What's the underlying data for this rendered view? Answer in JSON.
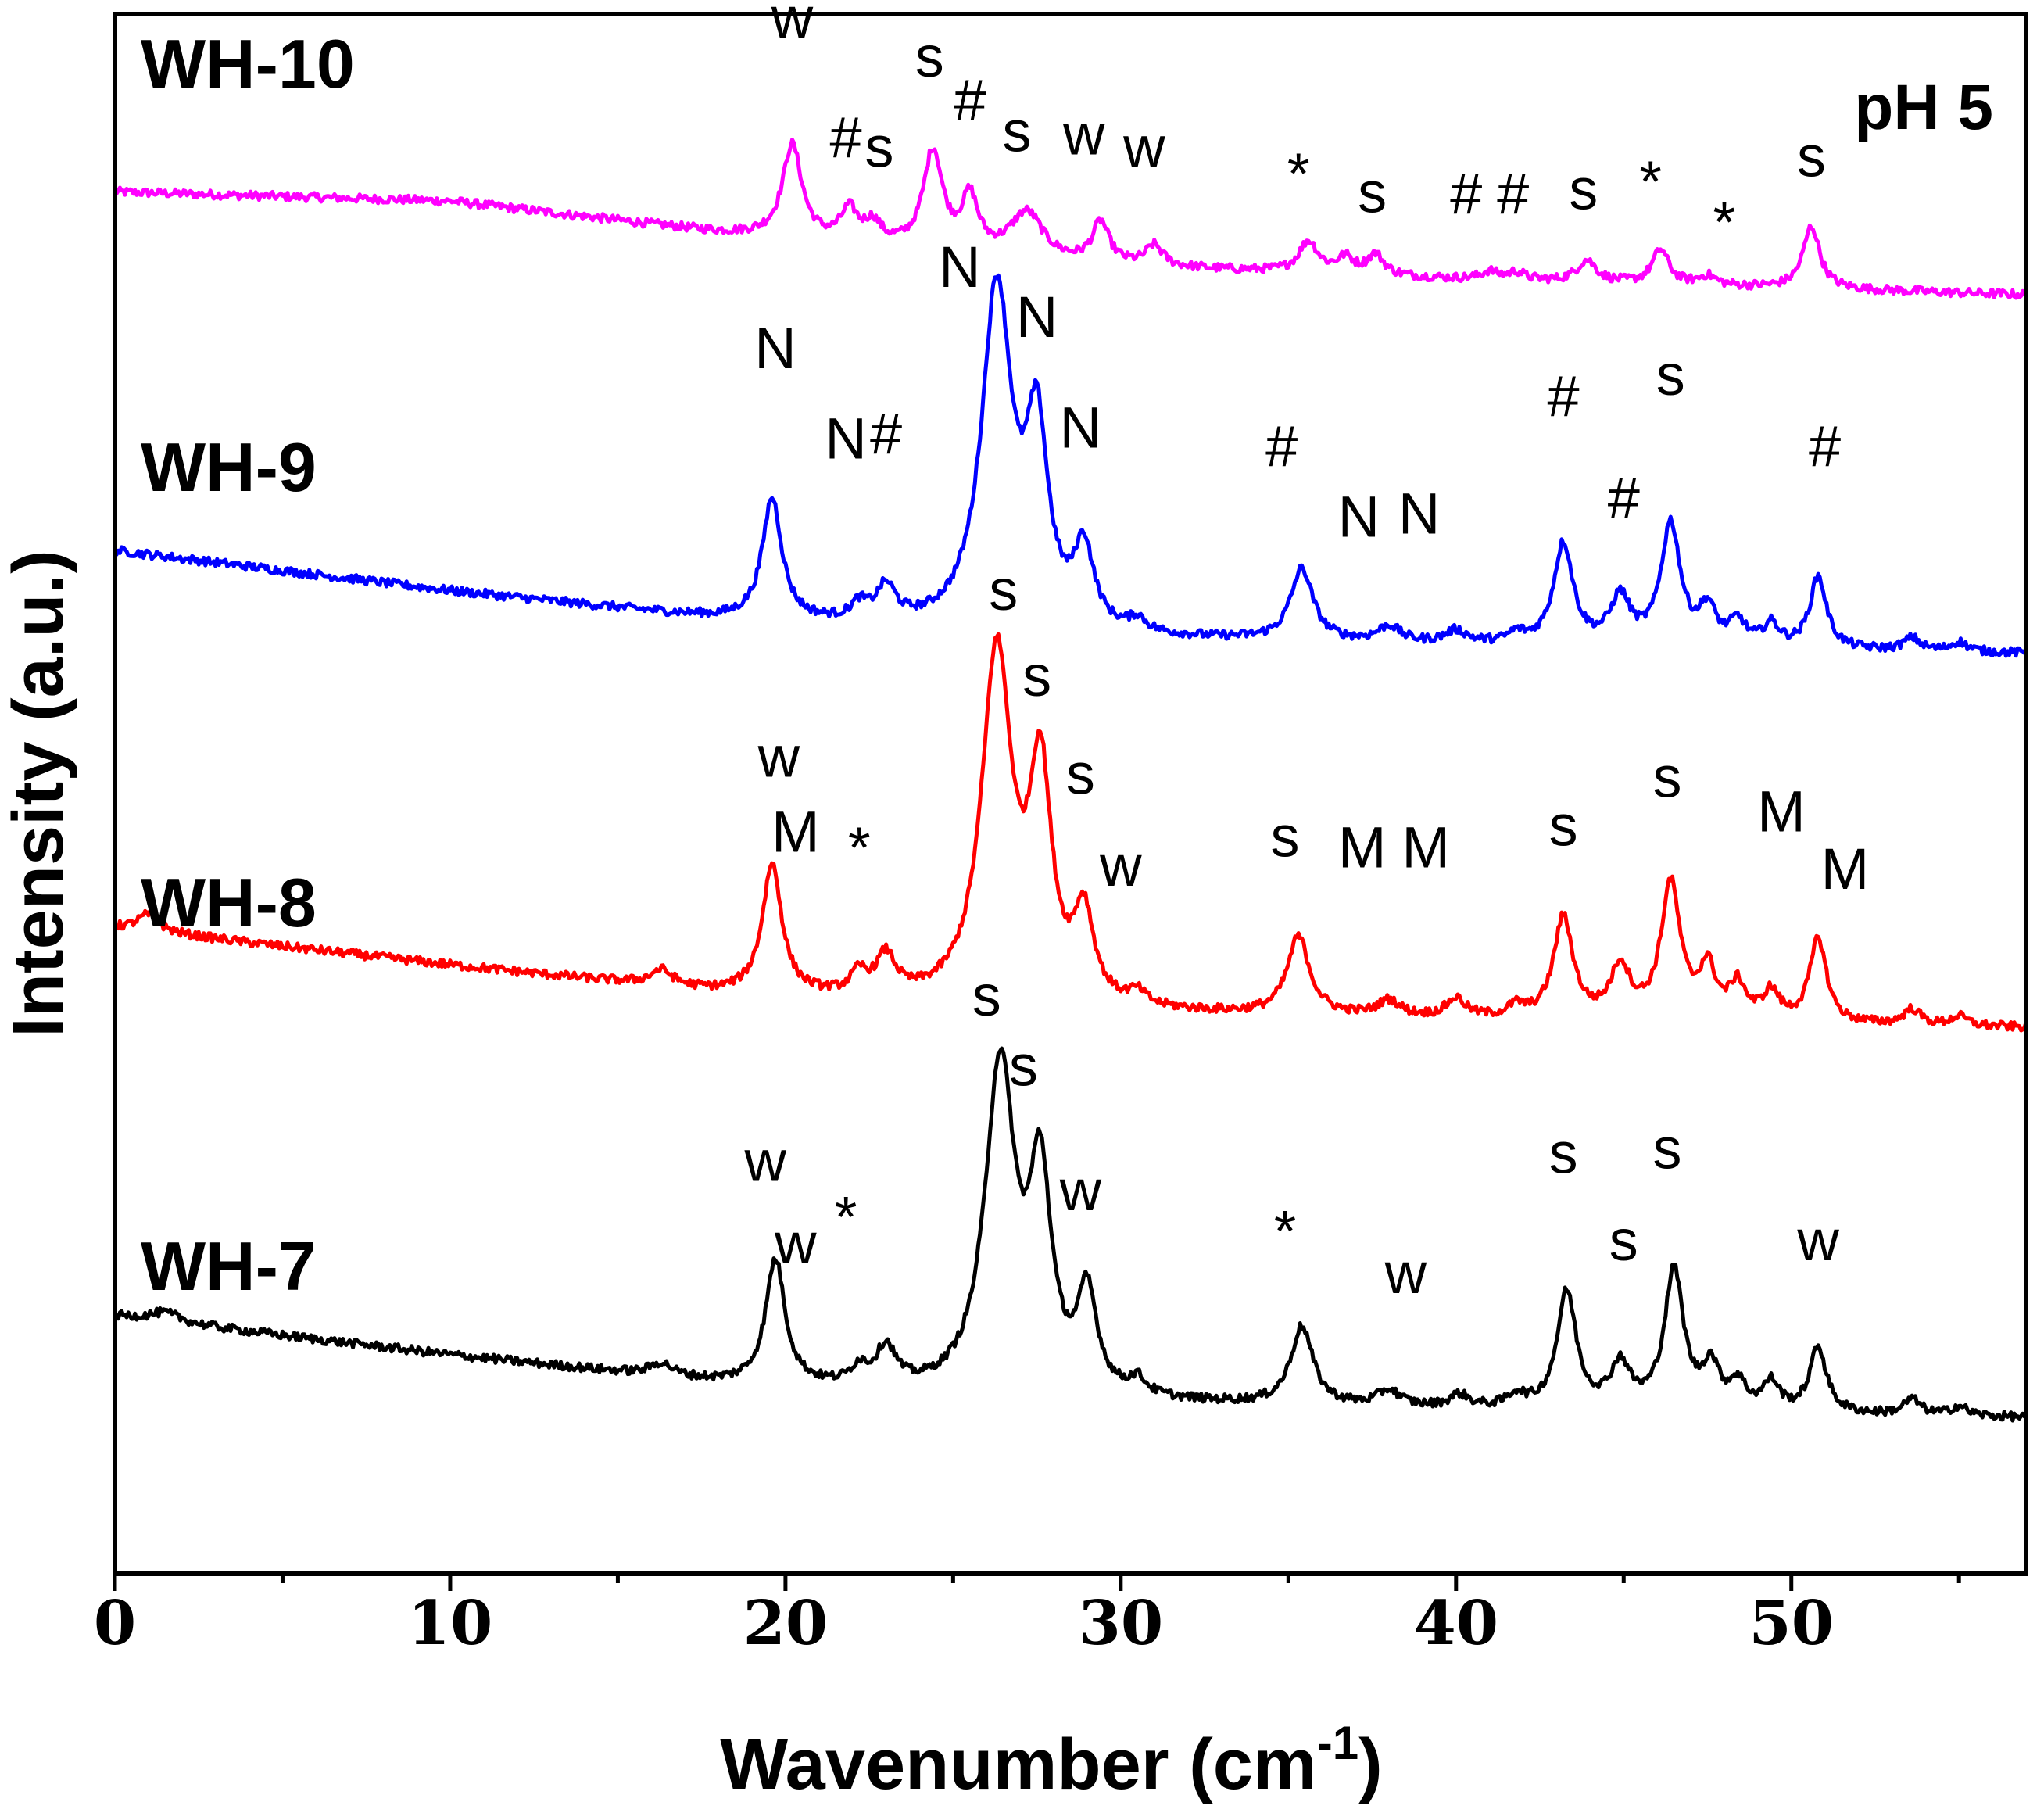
{
  "chart_data": {
    "type": "line",
    "xlabel": "Wavenumber (cm",
    "xlabel_sup": "-1",
    "xlabel_close": ")",
    "ylabel": "Intensity (a.u.)",
    "xlim": [
      0,
      57
    ],
    "ylim": [
      0,
      100
    ],
    "xticks": [
      0,
      10,
      20,
      30,
      40,
      50
    ],
    "annotation": "pH 5",
    "series": [
      {
        "name": "WH-10",
        "color": "#ff00ff",
        "offset": 80,
        "baseline": [
          [
            0,
            8.6
          ],
          [
            10,
            8.0
          ],
          [
            18,
            6.0
          ],
          [
            28,
            4.0
          ],
          [
            40,
            3.0
          ],
          [
            57,
            2.0
          ]
        ],
        "peaks": [
          [
            20.2,
            6.0,
            0.35
          ],
          [
            21.9,
            2.0,
            0.3
          ],
          [
            22.6,
            1.3,
            0.3
          ],
          [
            24.4,
            6.3,
            0.35
          ],
          [
            25.5,
            3.4,
            0.3
          ],
          [
            27.2,
            3.0,
            0.6
          ],
          [
            29.4,
            2.6,
            0.3
          ],
          [
            31.0,
            1.3,
            0.3
          ],
          [
            35.6,
            2.0,
            0.35
          ],
          [
            36.7,
            1.0,
            0.3
          ],
          [
            37.6,
            1.3,
            0.3
          ],
          [
            41.0,
            0.5,
            0.3
          ],
          [
            41.8,
            0.5,
            0.3
          ],
          [
            43.9,
            1.4,
            0.35
          ],
          [
            46.1,
            2.2,
            0.3
          ],
          [
            47.5,
            0.6,
            0.3
          ],
          [
            50.6,
            4.0,
            0.3
          ]
        ],
        "labels": [
          {
            "x": 20.2,
            "y": 98.5,
            "text": "w"
          },
          {
            "x": 21.8,
            "y": 90.8,
            "text": "#"
          },
          {
            "x": 22.8,
            "y": 90.2,
            "text": "s"
          },
          {
            "x": 24.3,
            "y": 96.0,
            "text": "s"
          },
          {
            "x": 25.5,
            "y": 93.2,
            "text": "#"
          },
          {
            "x": 26.9,
            "y": 91.2,
            "text": "s"
          },
          {
            "x": 28.9,
            "y": 91.0,
            "text": "w"
          },
          {
            "x": 30.7,
            "y": 90.2,
            "text": "w"
          },
          {
            "x": 35.3,
            "y": 88.5,
            "text": "*"
          },
          {
            "x": 37.5,
            "y": 87.3,
            "text": "s"
          },
          {
            "x": 40.3,
            "y": 87.2,
            "text": "#"
          },
          {
            "x": 41.7,
            "y": 87.2,
            "text": "#"
          },
          {
            "x": 43.8,
            "y": 87.5,
            "text": "s"
          },
          {
            "x": 45.8,
            "y": 88.0,
            "text": "*"
          },
          {
            "x": 48.0,
            "y": 85.4,
            "text": "*"
          },
          {
            "x": 50.6,
            "y": 89.6,
            "text": "s"
          }
        ]
      },
      {
        "name": "WH-9",
        "color": "#0000ff",
        "offset": 59,
        "baseline": [
          [
            0,
            6.6
          ],
          [
            10,
            4.0
          ],
          [
            18,
            2.2
          ],
          [
            28,
            1.0
          ],
          [
            40,
            0.5
          ],
          [
            57,
            0.0
          ]
        ],
        "peaks": [
          [
            19.6,
            7.8,
            0.35
          ],
          [
            22.2,
            1.0,
            0.3
          ],
          [
            23.0,
            2.2,
            0.35
          ],
          [
            26.3,
            21.8,
            0.55
          ],
          [
            27.5,
            12.0,
            0.4
          ],
          [
            28.9,
            5.0,
            0.35
          ],
          [
            30.5,
            0.8,
            0.3
          ],
          [
            35.4,
            4.6,
            0.4
          ],
          [
            38.0,
            1.0,
            0.4
          ],
          [
            40.0,
            0.8,
            0.4
          ],
          [
            41.8,
            0.6,
            0.3
          ],
          [
            43.2,
            6.5,
            0.35
          ],
          [
            44.9,
            3.0,
            0.35
          ],
          [
            46.4,
            7.8,
            0.35
          ],
          [
            47.5,
            2.3,
            0.3
          ],
          [
            48.4,
            1.5,
            0.3
          ],
          [
            49.4,
            1.4,
            0.3
          ],
          [
            50.8,
            4.6,
            0.3
          ],
          [
            53.6,
            0.8,
            0.3
          ],
          [
            55.0,
            0.6,
            0.3
          ]
        ],
        "labels": [
          {
            "x": 19.7,
            "y": 77.3,
            "text": "N"
          },
          {
            "x": 21.8,
            "y": 71.5,
            "text": "N"
          },
          {
            "x": 23.0,
            "y": 71.8,
            "text": "#"
          },
          {
            "x": 25.2,
            "y": 82.5,
            "text": "N"
          },
          {
            "x": 27.5,
            "y": 79.3,
            "text": "N"
          },
          {
            "x": 28.8,
            "y": 72.2,
            "text": "N"
          },
          {
            "x": 34.8,
            "y": 71.0,
            "text": "#"
          },
          {
            "x": 37.1,
            "y": 66.5,
            "text": "N"
          },
          {
            "x": 38.9,
            "y": 66.7,
            "text": "N"
          },
          {
            "x": 43.2,
            "y": 74.2,
            "text": "#"
          },
          {
            "x": 45.0,
            "y": 67.7,
            "text": "#"
          },
          {
            "x": 46.4,
            "y": 75.6,
            "text": "s"
          },
          {
            "x": 51.0,
            "y": 71.0,
            "text": "#"
          }
        ]
      },
      {
        "name": "WH-8",
        "color": "#ff0000",
        "offset": 35,
        "baseline": [
          [
            0,
            6.4
          ],
          [
            10,
            4.0
          ],
          [
            18,
            2.2
          ],
          [
            28,
            1.0
          ],
          [
            40,
            0.5
          ],
          [
            57,
            0.0
          ]
        ],
        "peaks": [
          [
            1.0,
            1.1,
            0.4
          ],
          [
            16.3,
            1.0,
            0.4
          ],
          [
            19.6,
            8.3,
            0.35
          ],
          [
            22.2,
            1.3,
            0.3
          ],
          [
            23.0,
            2.5,
            0.35
          ],
          [
            26.3,
            22.5,
            0.55
          ],
          [
            27.6,
            14.2,
            0.4
          ],
          [
            28.9,
            5.5,
            0.35
          ],
          [
            30.5,
            0.8,
            0.3
          ],
          [
            35.3,
            5.0,
            0.4
          ],
          [
            38.0,
            1.0,
            0.4
          ],
          [
            40.0,
            1.2,
            0.35
          ],
          [
            41.8,
            0.7,
            0.3
          ],
          [
            43.2,
            6.5,
            0.35
          ],
          [
            44.9,
            3.3,
            0.35
          ],
          [
            46.4,
            8.7,
            0.35
          ],
          [
            47.5,
            3.2,
            0.3
          ],
          [
            48.4,
            2.2,
            0.3
          ],
          [
            49.4,
            1.8,
            0.3
          ],
          [
            50.8,
            5.4,
            0.3
          ],
          [
            53.6,
            1.0,
            0.3
          ],
          [
            55.0,
            0.6,
            0.3
          ]
        ],
        "labels": [
          {
            "x": 19.8,
            "y": 51.1,
            "text": "w"
          },
          {
            "x": 20.3,
            "y": 46.3,
            "text": "M"
          },
          {
            "x": 22.2,
            "y": 45.3,
            "text": "*"
          },
          {
            "x": 26.5,
            "y": 61.8,
            "text": "s"
          },
          {
            "x": 27.5,
            "y": 56.3,
            "text": "s"
          },
          {
            "x": 28.8,
            "y": 50.0,
            "text": "s"
          },
          {
            "x": 30.0,
            "y": 44.1,
            "text": "w"
          },
          {
            "x": 34.9,
            "y": 46.0,
            "text": "s"
          },
          {
            "x": 37.2,
            "y": 45.3,
            "text": "M"
          },
          {
            "x": 39.1,
            "y": 45.3,
            "text": "M"
          },
          {
            "x": 43.2,
            "y": 46.7,
            "text": "s"
          },
          {
            "x": 46.3,
            "y": 49.8,
            "text": "s"
          },
          {
            "x": 49.7,
            "y": 47.6,
            "text": "M"
          },
          {
            "x": 51.6,
            "y": 43.9,
            "text": "M"
          }
        ]
      },
      {
        "name": "WH-7",
        "color": "#000000",
        "offset": 10,
        "baseline": [
          [
            0,
            6.5
          ],
          [
            10,
            4.0
          ],
          [
            18,
            2.2
          ],
          [
            28,
            1.0
          ],
          [
            40,
            0.5
          ],
          [
            57,
            0.0
          ]
        ],
        "peaks": [
          [
            1.5,
            0.6,
            0.6
          ],
          [
            16.3,
            0.8,
            0.4
          ],
          [
            19.7,
            8.0,
            0.35
          ],
          [
            22.2,
            1.1,
            0.3
          ],
          [
            23.0,
            2.5,
            0.35
          ],
          [
            26.4,
            21.0,
            0.55
          ],
          [
            27.6,
            13.2,
            0.4
          ],
          [
            29.0,
            6.2,
            0.35
          ],
          [
            30.5,
            1.0,
            0.3
          ],
          [
            35.4,
            5.0,
            0.4
          ],
          [
            38.0,
            1.0,
            0.4
          ],
          [
            40.1,
            0.8,
            0.35
          ],
          [
            41.8,
            0.8,
            0.3
          ],
          [
            43.3,
            7.5,
            0.35
          ],
          [
            44.9,
            2.8,
            0.35
          ],
          [
            46.5,
            8.9,
            0.35
          ],
          [
            47.6,
            2.7,
            0.3
          ],
          [
            48.4,
            1.7,
            0.3
          ],
          [
            49.4,
            1.8,
            0.3
          ],
          [
            50.8,
            4.2,
            0.3
          ],
          [
            53.6,
            1.0,
            0.3
          ],
          [
            55.0,
            0.6,
            0.3
          ]
        ],
        "labels": [
          {
            "x": 19.4,
            "y": 25.2,
            "text": "w"
          },
          {
            "x": 20.3,
            "y": 19.9,
            "text": "w"
          },
          {
            "x": 21.8,
            "y": 21.6,
            "text": "*"
          },
          {
            "x": 26.0,
            "y": 35.8,
            "text": "s"
          },
          {
            "x": 27.1,
            "y": 31.3,
            "text": "s"
          },
          {
            "x": 28.8,
            "y": 23.3,
            "text": "w"
          },
          {
            "x": 34.9,
            "y": 20.7,
            "text": "*"
          },
          {
            "x": 38.5,
            "y": 18.0,
            "text": "w"
          },
          {
            "x": 43.2,
            "y": 25.7,
            "text": "s"
          },
          {
            "x": 45.0,
            "y": 20.1,
            "text": "s"
          },
          {
            "x": 46.3,
            "y": 26.0,
            "text": "s"
          },
          {
            "x": 50.8,
            "y": 20.1,
            "text": "w"
          }
        ]
      }
    ]
  }
}
